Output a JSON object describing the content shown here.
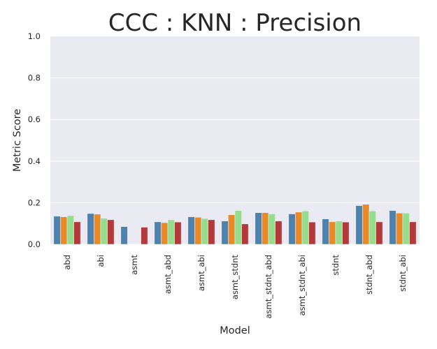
{
  "chart_data": {
    "type": "bar",
    "title": "CCC : KNN : Precision",
    "xlabel": "Model",
    "ylabel": "Metric Score",
    "ylim": [
      0,
      1.0
    ],
    "yticks": [
      "0.0",
      "0.2",
      "0.4",
      "0.6",
      "0.8",
      "1.0"
    ],
    "grid": true,
    "legend": "none",
    "categories": [
      "abd",
      "abi",
      "asmt",
      "asmt_abd",
      "asmt_abi",
      "asmt_stdnt",
      "asmt_stdnt_abd",
      "asmt_stdnt_abi",
      "stdnt",
      "stdnt_abd",
      "stdnt_abi"
    ],
    "series": [
      {
        "color": "#4c82b0",
        "values": [
          0.135,
          0.148,
          0.085,
          0.108,
          0.132,
          0.112,
          0.152,
          0.146,
          0.122,
          0.186,
          0.162
        ]
      },
      {
        "color": "#e8892a",
        "values": [
          0.132,
          0.145,
          0.0,
          0.104,
          0.13,
          0.142,
          0.152,
          0.155,
          0.108,
          0.192,
          0.15
        ]
      },
      {
        "color": "#96de8e",
        "values": [
          0.138,
          0.125,
          0.0,
          0.118,
          0.124,
          0.162,
          0.146,
          0.16,
          0.112,
          0.16,
          0.15
        ]
      },
      {
        "color": "#b23a3a",
        "values": [
          0.108,
          0.118,
          0.082,
          0.107,
          0.118,
          0.098,
          0.112,
          0.107,
          0.107,
          0.108,
          0.108
        ]
      }
    ],
    "plot_background": "#eaeaf2",
    "grid_color": "#ffffff"
  }
}
